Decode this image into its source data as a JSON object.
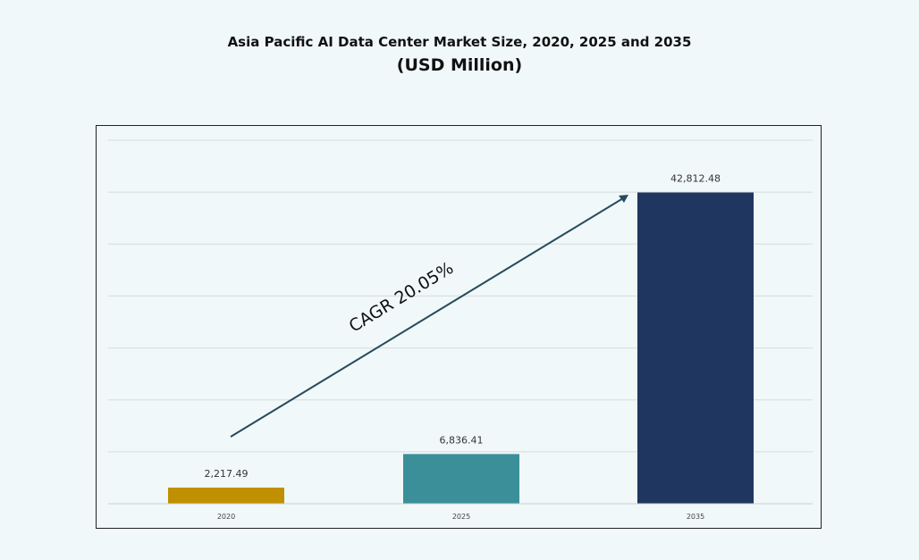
{
  "chart_data": {
    "type": "bar",
    "title": "Asia Pacific AI Data Center Market Size, 2020, 2025 and 2035",
    "subtitle": "(USD Million)",
    "categories": [
      "2020",
      "2025",
      "2035"
    ],
    "values": [
      2217.49,
      6836.41,
      42812.48
    ],
    "data_labels": [
      "2,217.49",
      "6,836.41",
      "42,812.48"
    ],
    "colors": [
      "#c09000",
      "#3b8f99",
      "#1f3660"
    ],
    "ylim": [
      0,
      50000
    ],
    "grid": true,
    "annotation": {
      "text": "CAGR 20.05%",
      "type": "arrow",
      "from": "2020",
      "to": "2035",
      "color": "#264b5d"
    },
    "background": "#f1f8fa"
  }
}
